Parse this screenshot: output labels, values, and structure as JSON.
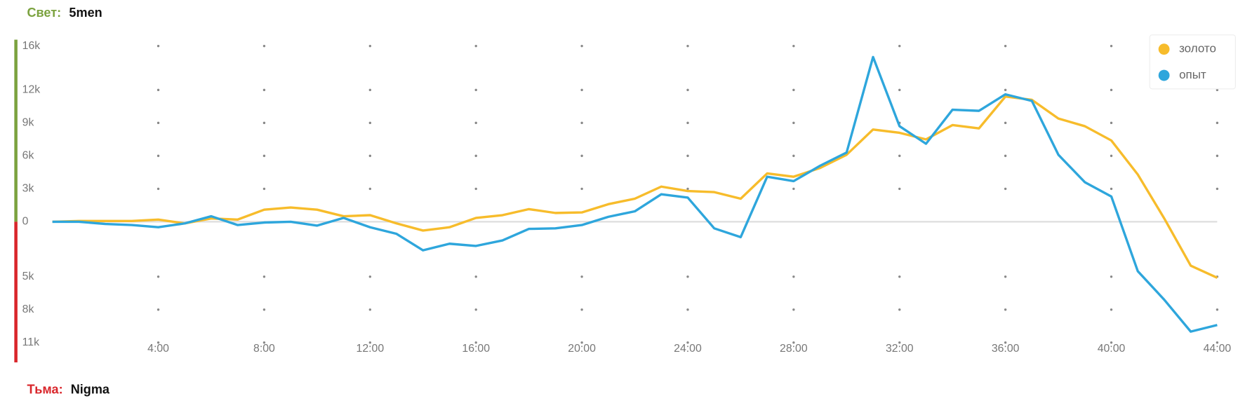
{
  "teams": {
    "top_label": "Свет:",
    "top_name": "5men",
    "bottom_label": "Тьма:",
    "bottom_name": "Nigma"
  },
  "chart_data": {
    "type": "line",
    "grid": true,
    "legend": "top-right",
    "x": [
      0,
      1,
      2,
      3,
      4,
      5,
      6,
      7,
      8,
      9,
      10,
      11,
      12,
      13,
      14,
      15,
      16,
      17,
      18,
      19,
      20,
      21,
      22,
      23,
      24,
      25,
      26,
      27,
      28,
      29,
      30,
      31,
      32,
      33,
      34,
      35,
      36,
      37,
      38,
      39,
      40,
      41,
      42,
      43,
      44
    ],
    "xlim": [
      0,
      44
    ],
    "xticks": [
      {
        "value": 4,
        "label": "4:00"
      },
      {
        "value": 8,
        "label": "8:00"
      },
      {
        "value": 12,
        "label": "12:00"
      },
      {
        "value": 16,
        "label": "16:00"
      },
      {
        "value": 20,
        "label": "20:00"
      },
      {
        "value": 24,
        "label": "24:00"
      },
      {
        "value": 28,
        "label": "28:00"
      },
      {
        "value": 32,
        "label": "32:00"
      },
      {
        "value": 36,
        "label": "36:00"
      },
      {
        "value": 40,
        "label": "40:00"
      },
      {
        "value": 44,
        "label": "44:00"
      }
    ],
    "ylim": [
      -11,
      16
    ],
    "yticks": [
      {
        "value": 16,
        "label": "16k"
      },
      {
        "value": 12,
        "label": "12k"
      },
      {
        "value": 9,
        "label": "9k"
      },
      {
        "value": 6,
        "label": "6k"
      },
      {
        "value": 3,
        "label": "3k"
      },
      0,
      {
        "value": -5,
        "label": "5k"
      },
      {
        "value": -8,
        "label": "8k"
      },
      {
        "value": -11,
        "label": "11k"
      }
    ],
    "series": [
      {
        "name": "золото",
        "color": "#f7bc2b",
        "values": [
          0,
          0.07,
          0.07,
          0.07,
          0.2,
          -0.15,
          0.3,
          0.2,
          1.1,
          1.3,
          1.1,
          0.5,
          0.6,
          -0.15,
          -0.8,
          -0.5,
          0.35,
          0.6,
          1.15,
          0.8,
          0.85,
          1.6,
          2.1,
          3.2,
          2.8,
          2.7,
          2.1,
          4.4,
          4.1,
          4.9,
          6.1,
          8.4,
          8.1,
          7.5,
          8.8,
          8.5,
          11.4,
          11.1,
          9.4,
          8.7,
          7.4,
          4.3,
          0.3,
          -4.0,
          -5.1
        ]
      },
      {
        "name": "опыт",
        "color": "#2ea6dc",
        "values": [
          0,
          0,
          -0.2,
          -0.3,
          -0.5,
          -0.15,
          0.5,
          -0.3,
          -0.07,
          0,
          -0.35,
          0.35,
          -0.5,
          -1.1,
          -2.6,
          -2.0,
          -2.2,
          -1.7,
          -0.65,
          -0.6,
          -0.3,
          0.45,
          0.95,
          2.5,
          2.2,
          -0.6,
          -1.4,
          4.1,
          3.7,
          5.1,
          6.3,
          15.0,
          8.7,
          7.1,
          10.2,
          10.1,
          11.6,
          11.0,
          6.1,
          3.6,
          2.3,
          -4.5,
          -7.1,
          -10.0,
          -9.4
        ]
      }
    ]
  }
}
